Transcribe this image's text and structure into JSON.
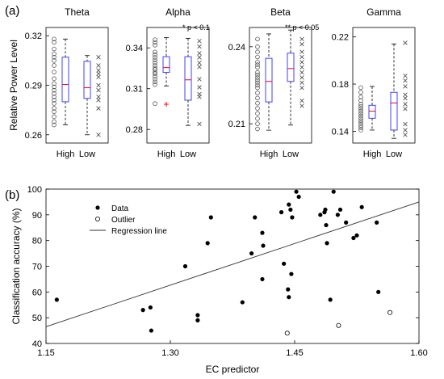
{
  "panel_labels": {
    "a": "(a)",
    "b": "(b)"
  },
  "colors": {
    "box": "#4040ff",
    "median": "#ff0000",
    "outlier_plus": "#ff0000",
    "high_marker": "#555555",
    "low_marker": "#555555",
    "axis": "#000000",
    "line": "#333333"
  },
  "chart_data": [
    {
      "type": "box",
      "title": "Theta",
      "ylabel": "Relative Power Level",
      "categories": [
        "High",
        "Low"
      ],
      "ylim": [
        0.255,
        0.325
      ],
      "yticks": [
        "0.26",
        "0.29",
        "0.32"
      ],
      "ytick_values": [
        0.26,
        0.29,
        0.32
      ],
      "annotation": "",
      "boxes": [
        {
          "name": "High",
          "min": 0.266,
          "q1": 0.28,
          "median": 0.2905,
          "q3": 0.307,
          "max": 0.318
        },
        {
          "name": "Low",
          "min": 0.26,
          "q1": 0.282,
          "median": 0.2885,
          "q3": 0.3045,
          "max": 0.308
        }
      ],
      "points": [
        {
          "group": "High",
          "values": [
            0.318,
            0.316,
            0.312,
            0.309,
            0.307,
            0.305,
            0.302,
            0.298,
            0.294,
            0.291,
            0.289,
            0.287,
            0.285,
            0.283,
            0.281,
            0.279,
            0.276,
            0.274,
            0.271,
            0.268,
            0.266
          ]
        },
        {
          "group": "Low",
          "values": [
            0.307,
            0.302,
            0.299,
            0.297,
            0.295,
            0.29,
            0.287,
            0.283,
            0.281,
            0.276,
            0.26
          ]
        }
      ],
      "outliers": []
    },
    {
      "type": "box",
      "title": "Alpha",
      "ylabel": "",
      "categories": [
        "High",
        "Low"
      ],
      "ylim": [
        0.27,
        0.355
      ],
      "yticks": [
        "0.28",
        "0.31",
        "0.34"
      ],
      "ytick_values": [
        0.28,
        0.31,
        0.34
      ],
      "annotation": "* p < 0.1",
      "boxes": [
        {
          "name": "High",
          "min": 0.312,
          "q1": 0.322,
          "median": 0.3255,
          "q3": 0.3335,
          "max": 0.3475
        },
        {
          "name": "Low",
          "min": 0.283,
          "q1": 0.3015,
          "median": 0.3165,
          "q3": 0.3335,
          "max": 0.347
        }
      ],
      "points": [
        {
          "group": "High",
          "values": [
            0.346,
            0.344,
            0.342,
            0.337,
            0.335,
            0.333,
            0.331,
            0.329,
            0.327,
            0.325,
            0.324,
            0.322,
            0.321,
            0.319,
            0.317,
            0.315,
            0.313,
            0.299
          ]
        },
        {
          "group": "Low",
          "values": [
            0.345,
            0.341,
            0.336,
            0.333,
            0.329,
            0.326,
            0.317,
            0.311,
            0.306,
            0.304,
            0.284
          ]
        }
      ],
      "outliers": [
        {
          "group": "High",
          "value": 0.2985
        }
      ]
    },
    {
      "type": "box",
      "title": "Beta",
      "ylabel": "",
      "categories": [
        "High",
        "Low"
      ],
      "ylim": [
        0.2025,
        0.2475
      ],
      "yticks": [
        "0.21",
        "0.24"
      ],
      "ytick_values": [
        0.21,
        0.24
      ],
      "annotation": "** p < 0.05",
      "boxes": [
        {
          "name": "High",
          "min": 0.2075,
          "q1": 0.2185,
          "median": 0.2265,
          "q3": 0.2355,
          "max": 0.245
        },
        {
          "name": "Low",
          "min": 0.2095,
          "q1": 0.2265,
          "median": 0.2315,
          "q3": 0.2375,
          "max": 0.2465
        }
      ],
      "points": [
        {
          "group": "High",
          "values": [
            0.243,
            0.24,
            0.238,
            0.236,
            0.234,
            0.233,
            0.232,
            0.23,
            0.229,
            0.228,
            0.227,
            0.226,
            0.225,
            0.224,
            0.222,
            0.22,
            0.218,
            0.216,
            0.214,
            0.212,
            0.21,
            0.208
          ]
        },
        {
          "group": "Low",
          "values": [
            0.243,
            0.241,
            0.238,
            0.236,
            0.234,
            0.232,
            0.23,
            0.228,
            0.226,
            0.224,
            0.219,
            0.217
          ]
        }
      ],
      "outliers": []
    },
    {
      "type": "box",
      "title": "Gamma",
      "ylabel": "",
      "categories": [
        "High",
        "Low"
      ],
      "ylim": [
        0.13,
        0.228
      ],
      "yticks": [
        "0.14",
        "0.18",
        "0.22"
      ],
      "ytick_values": [
        0.14,
        0.18,
        0.22
      ],
      "annotation": "",
      "boxes": [
        {
          "name": "High",
          "min": 0.141,
          "q1": 0.151,
          "median": 0.157,
          "q3": 0.162,
          "max": 0.178
        },
        {
          "name": "Low",
          "min": 0.134,
          "q1": 0.141,
          "median": 0.164,
          "q3": 0.173,
          "max": 0.214
        }
      ],
      "points": [
        {
          "group": "High",
          "values": [
            0.177,
            0.173,
            0.169,
            0.166,
            0.163,
            0.161,
            0.159,
            0.157,
            0.155,
            0.153,
            0.151,
            0.149,
            0.147,
            0.145,
            0.143,
            0.141
          ]
        },
        {
          "group": "Low",
          "values": [
            0.215,
            0.187,
            0.183,
            0.178,
            0.171,
            0.168,
            0.163,
            0.159,
            0.146,
            0.141,
            0.137
          ]
        }
      ],
      "outliers": []
    },
    {
      "type": "scatter",
      "title": "",
      "xlabel": "EC predictor",
      "ylabel": "Classification accuracy (%)",
      "xlim": [
        1.15,
        1.6
      ],
      "ylim": [
        40,
        100
      ],
      "xticks": [
        "1.15",
        "1.30",
        "1.45",
        "1.60"
      ],
      "xtick_values": [
        1.15,
        1.3,
        1.45,
        1.6
      ],
      "yticks": [
        "40",
        "50",
        "60",
        "70",
        "80",
        "90",
        "100"
      ],
      "ytick_values": [
        40,
        50,
        60,
        70,
        80,
        90,
        100
      ],
      "legend": {
        "placement": "top-left",
        "entries": [
          "Data",
          "Outlier",
          "Regression line"
        ]
      },
      "series": [
        {
          "name": "Data",
          "marker": "filled-circle",
          "points": [
            [
              1.163,
              57
            ],
            [
              1.267,
              53
            ],
            [
              1.276,
              54
            ],
            [
              1.277,
              45
            ],
            [
              1.318,
              70
            ],
            [
              1.333,
              51
            ],
            [
              1.333,
              49
            ],
            [
              1.345,
              79
            ],
            [
              1.349,
              89
            ],
            [
              1.387,
              56
            ],
            [
              1.398,
              75
            ],
            [
              1.402,
              89
            ],
            [
              1.411,
              83
            ],
            [
              1.412,
              78
            ],
            [
              1.411,
              65
            ],
            [
              1.434,
              91
            ],
            [
              1.437,
              71
            ],
            [
              1.442,
              61
            ],
            [
              1.443,
              58
            ],
            [
              1.446,
              67
            ],
            [
              1.443,
              94
            ],
            [
              1.447,
              89
            ],
            [
              1.445,
              92
            ],
            [
              1.452,
              99
            ],
            [
              1.455,
              97
            ],
            [
              1.481,
              90
            ],
            [
              1.486,
              91
            ],
            [
              1.487,
              92
            ],
            [
              1.488,
              86
            ],
            [
              1.489,
              79
            ],
            [
              1.493,
              57
            ],
            [
              1.497,
              99
            ],
            [
              1.502,
              90
            ],
            [
              1.505,
              92
            ],
            [
              1.512,
              87
            ],
            [
              1.525,
              82
            ],
            [
              1.531,
              93
            ],
            [
              1.521,
              81
            ],
            [
              1.549,
              87
            ],
            [
              1.551,
              60
            ]
          ]
        },
        {
          "name": "Outlier",
          "marker": "open-circle",
          "points": [
            [
              1.441,
              44
            ],
            [
              1.503,
              47
            ],
            [
              1.565,
              52
            ]
          ]
        },
        {
          "name": "Regression line",
          "marker": "line",
          "points": [
            [
              1.15,
              46.5
            ],
            [
              1.6,
              95
            ]
          ]
        }
      ]
    }
  ]
}
